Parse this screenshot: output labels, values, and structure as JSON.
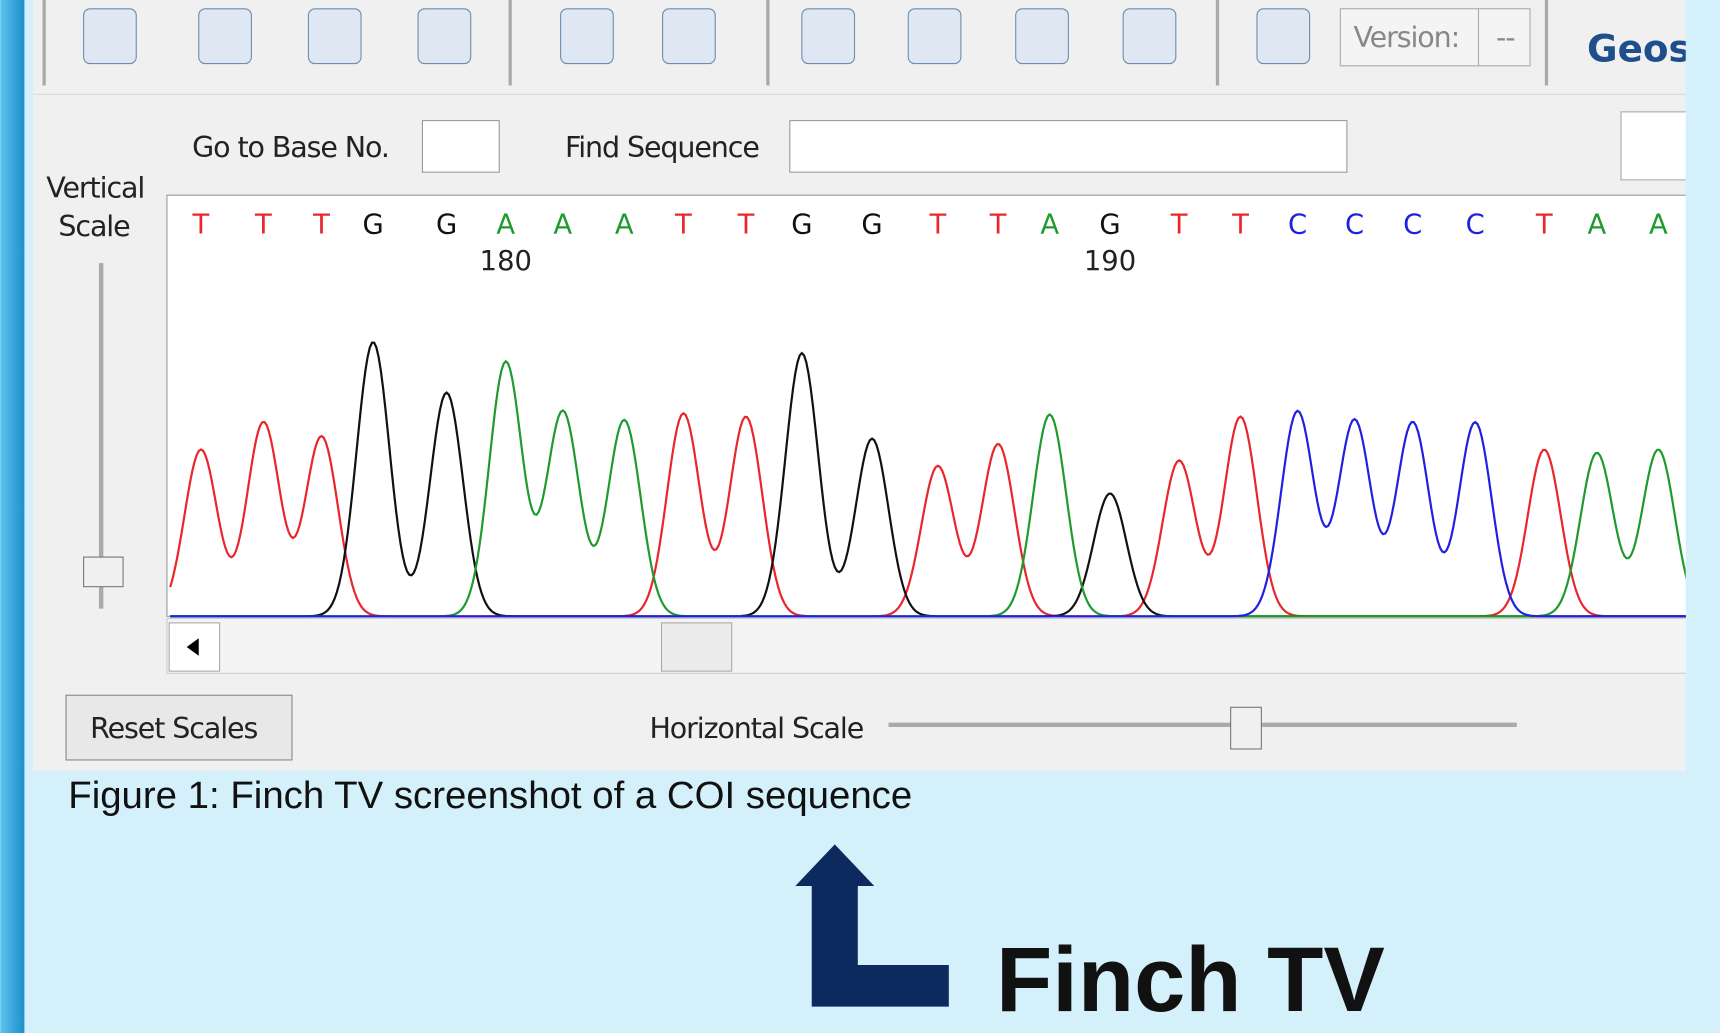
{
  "toolbar": {
    "version_label": "Version:",
    "version_value": "--",
    "title_partial": "Geos"
  },
  "controls": {
    "go_to_base": "Go to Base No.",
    "find_sequence": "Find Sequence",
    "vertical_scale": [
      "Vertical",
      "Scale"
    ],
    "reset_scales": "Reset Scales",
    "horizontal_scale": "Horizontal Scale"
  },
  "trace": {
    "bases": [
      "T",
      "T",
      "T",
      "G",
      "G",
      "A",
      "A",
      "A",
      "T",
      "T",
      "G",
      "G",
      "T",
      "T",
      "A",
      "G",
      "T",
      "T",
      "C",
      "C",
      "C",
      "C",
      "T",
      "A",
      "A"
    ],
    "positions": [
      180,
      190
    ]
  },
  "caption": "Figure 1: Finch TV screenshot of a COI sequence",
  "label": "Finch TV"
}
